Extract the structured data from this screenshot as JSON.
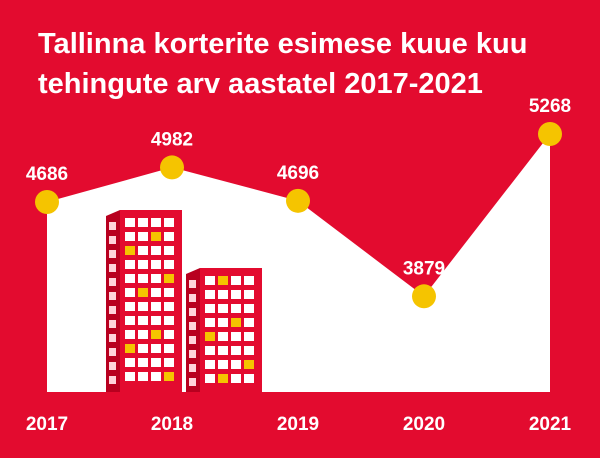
{
  "title_lines": [
    "Tallinna korterite esimese kuue kuu",
    "tehingute arv aastatel 2017-2021"
  ],
  "colors": {
    "background": "#e30b2f",
    "area_fill": "#ffffff",
    "marker": "#f5c400",
    "text": "#ffffff",
    "building_fill": "#e30b2f",
    "building_window": "#ffffff",
    "building_window_lit": "#f5c400"
  },
  "chart_data": {
    "type": "area",
    "title": "Tallinna korterite esimese kuue kuu tehingute arv aastatel 2017-2021",
    "categories": [
      "2017",
      "2018",
      "2019",
      "2020",
      "2021"
    ],
    "values": [
      4686,
      4982,
      4696,
      3879,
      5268
    ],
    "data_labels": [
      "4686",
      "4982",
      "4696",
      "3879",
      "5268"
    ],
    "xlabel": "",
    "ylabel": "",
    "grid": false,
    "legend": "none"
  }
}
